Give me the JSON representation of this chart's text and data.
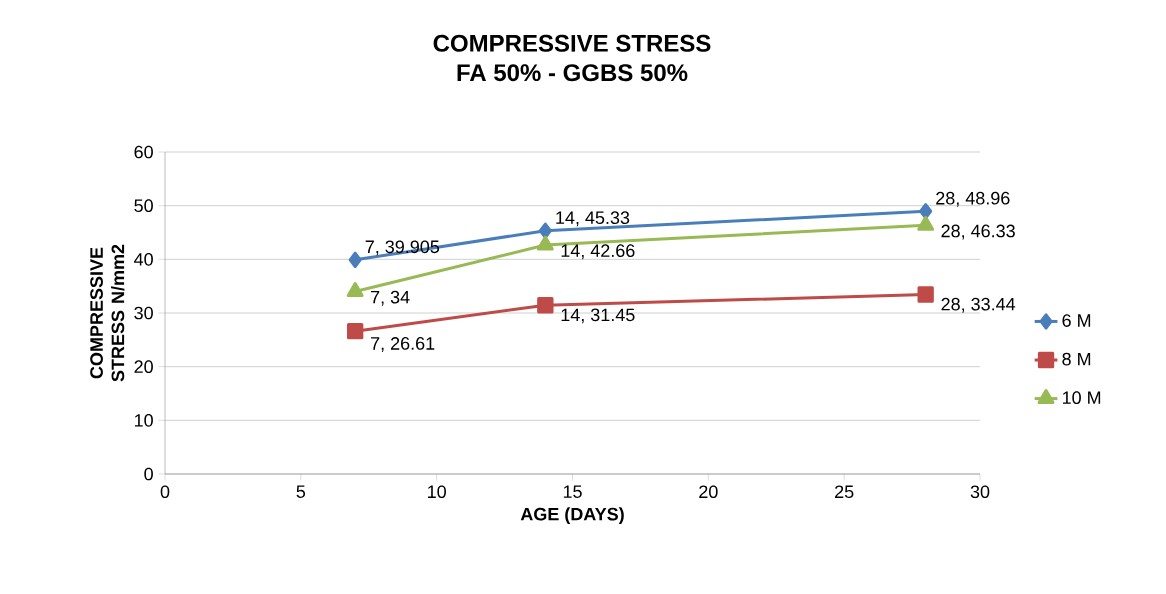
{
  "chart_data": {
    "type": "line",
    "title": "COMPRESSIVE STRESS",
    "subtitle": "FA 50% - GGBS 50%",
    "xlabel": "AGE (DAYS)",
    "ylabel": "COMPRESSIVE STRESS N/mm2",
    "x": [
      7,
      14,
      28
    ],
    "series": [
      {
        "name": "6 M",
        "color": "#4a7ebb",
        "marker": "diamond",
        "values": [
          39.905,
          45.33,
          48.96
        ],
        "value_labels": [
          "7, 39.905",
          "14, 45.33",
          "28, 48.96"
        ]
      },
      {
        "name": "8 M",
        "color": "#be4b48",
        "marker": "square",
        "values": [
          26.61,
          31.45,
          33.44
        ],
        "value_labels": [
          "7, 26.61",
          "14, 31.45",
          "28, 33.44"
        ]
      },
      {
        "name": "10 M",
        "color": "#98b954",
        "marker": "triangle",
        "values": [
          34,
          42.66,
          46.33
        ],
        "value_labels": [
          "7, 34",
          "14, 42.66",
          "28, 46.33"
        ]
      }
    ],
    "xlim": [
      0,
      30
    ],
    "xticks": [
      0,
      5,
      10,
      15,
      20,
      25,
      30
    ],
    "ylim": [
      0,
      60
    ],
    "yticks": [
      0,
      10,
      20,
      30,
      40,
      50,
      60
    ],
    "grid": "y",
    "legend": "right",
    "line_style": "solid"
  }
}
